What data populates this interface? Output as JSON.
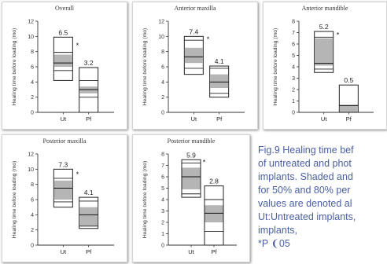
{
  "chart_data": [
    {
      "type": "box",
      "title": "Overall",
      "ylabel": "Healing time before loading (mo)",
      "ylim": [
        0,
        12
      ],
      "yticks": [
        0,
        2,
        4,
        6,
        8,
        10,
        12
      ],
      "categories": [
        "Ut",
        "Pf"
      ],
      "significance": "*",
      "boxes": [
        {
          "category": "Ut",
          "mean_label": "6.5",
          "min": 4.2,
          "max": 9.9,
          "p80_low": 5.5,
          "p80_high": 7.9,
          "p50_low": 6.0,
          "p50_high": 7.6,
          "median": 6.5
        },
        {
          "category": "Pf",
          "mean_label": "3.2",
          "min": 0.0,
          "max": 5.9,
          "p80_low": 2.0,
          "p80_high": 4.2,
          "p50_low": 2.5,
          "p50_high": 3.4,
          "median": 3.0
        }
      ]
    },
    {
      "type": "box",
      "title": "Anterior maxilla",
      "ylabel": "Healing time before loading (mo)",
      "ylim": [
        0,
        12
      ],
      "yticks": [
        0,
        2,
        4,
        6,
        8,
        10,
        12
      ],
      "categories": [
        "Ut",
        "Pf"
      ],
      "significance": "*",
      "boxes": [
        {
          "category": "Ut",
          "mean_label": "7.4",
          "min": 5.0,
          "max": 10.0,
          "p80_low": 5.8,
          "p80_high": 9.5,
          "p50_low": 6.5,
          "p50_high": 8.5,
          "median": 7.3
        },
        {
          "category": "Pf",
          "mean_label": "4.1",
          "min": 2.0,
          "max": 6.1,
          "p80_low": 2.5,
          "p80_high": 5.8,
          "p50_low": 3.2,
          "p50_high": 5.0,
          "median": 4.0
        }
      ]
    },
    {
      "type": "box",
      "title": "Anterior mandible",
      "ylabel": "Healing time before loading (mo)",
      "ylim": [
        0,
        8
      ],
      "yticks": [
        0,
        1,
        2,
        3,
        4,
        5,
        6,
        7,
        8
      ],
      "categories": [
        "Ut",
        "Pf"
      ],
      "significance": "*",
      "boxes": [
        {
          "category": "Ut",
          "mean_label": "5.2",
          "min": 3.5,
          "max": 7.1,
          "p80_low": 3.8,
          "p80_high": 6.6,
          "p50_low": 4.1,
          "p50_high": 6.5,
          "median": 4.3
        },
        {
          "category": "Pf",
          "mean_label": "0.5",
          "min": 0.0,
          "max": 2.4,
          "p80_low": 0.0,
          "p80_high": 0.6,
          "p50_low": 0.0,
          "p50_high": 0.6,
          "median": 0.6
        }
      ]
    },
    {
      "type": "box",
      "title": "Posterior maxilla",
      "ylabel": "Healing time before loading (mo)",
      "ylim": [
        0,
        12
      ],
      "yticks": [
        0,
        2,
        4,
        6,
        8,
        10,
        12
      ],
      "categories": [
        "Ut",
        "Pf"
      ],
      "significance": "*",
      "boxes": [
        {
          "category": "Ut",
          "mean_label": "7.3",
          "min": 5.0,
          "max": 10.0,
          "p80_low": 5.7,
          "p80_high": 8.8,
          "p50_low": 6.0,
          "p50_high": 8.5,
          "median": 7.5
        },
        {
          "category": "Pf",
          "mean_label": "4.1",
          "min": 2.2,
          "max": 6.3,
          "p80_low": 2.5,
          "p80_high": 5.8,
          "p50_low": 2.5,
          "p50_high": 5.0,
          "median": 4.0
        }
      ]
    },
    {
      "type": "box",
      "title": "Posterior mandible",
      "ylabel": "Healing time before loading (mo)",
      "ylim": [
        0,
        8
      ],
      "yticks": [
        0,
        1,
        2,
        3,
        4,
        5,
        6,
        7,
        8
      ],
      "categories": [
        "Ut",
        "Pf"
      ],
      "significance": "*",
      "boxes": [
        {
          "category": "Ut",
          "mean_label": "5.9",
          "min": 4.2,
          "max": 7.5,
          "p80_low": 4.5,
          "p80_high": 7.2,
          "p50_low": 4.9,
          "p50_high": 6.8,
          "median": 6.0
        },
        {
          "category": "Pf",
          "mean_label": "2.8",
          "min": 0.0,
          "max": 5.2,
          "p80_low": 1.2,
          "p80_high": 4.0,
          "p50_low": 2.0,
          "p50_high": 3.5,
          "median": 2.8
        }
      ]
    }
  ],
  "caption": {
    "lines": [
      "Fig.9 Healing time bef",
      "of untreated and phot",
      "implants. Shaded and",
      "for 50% and 80% per",
      "values are denoted al",
      "Ut:Untreated implants,",
      "implants,",
      "*P ❨05"
    ]
  },
  "colors": {
    "shade": "#b5b5b5",
    "caption": "#4a5fa3",
    "axis": "#333333"
  }
}
